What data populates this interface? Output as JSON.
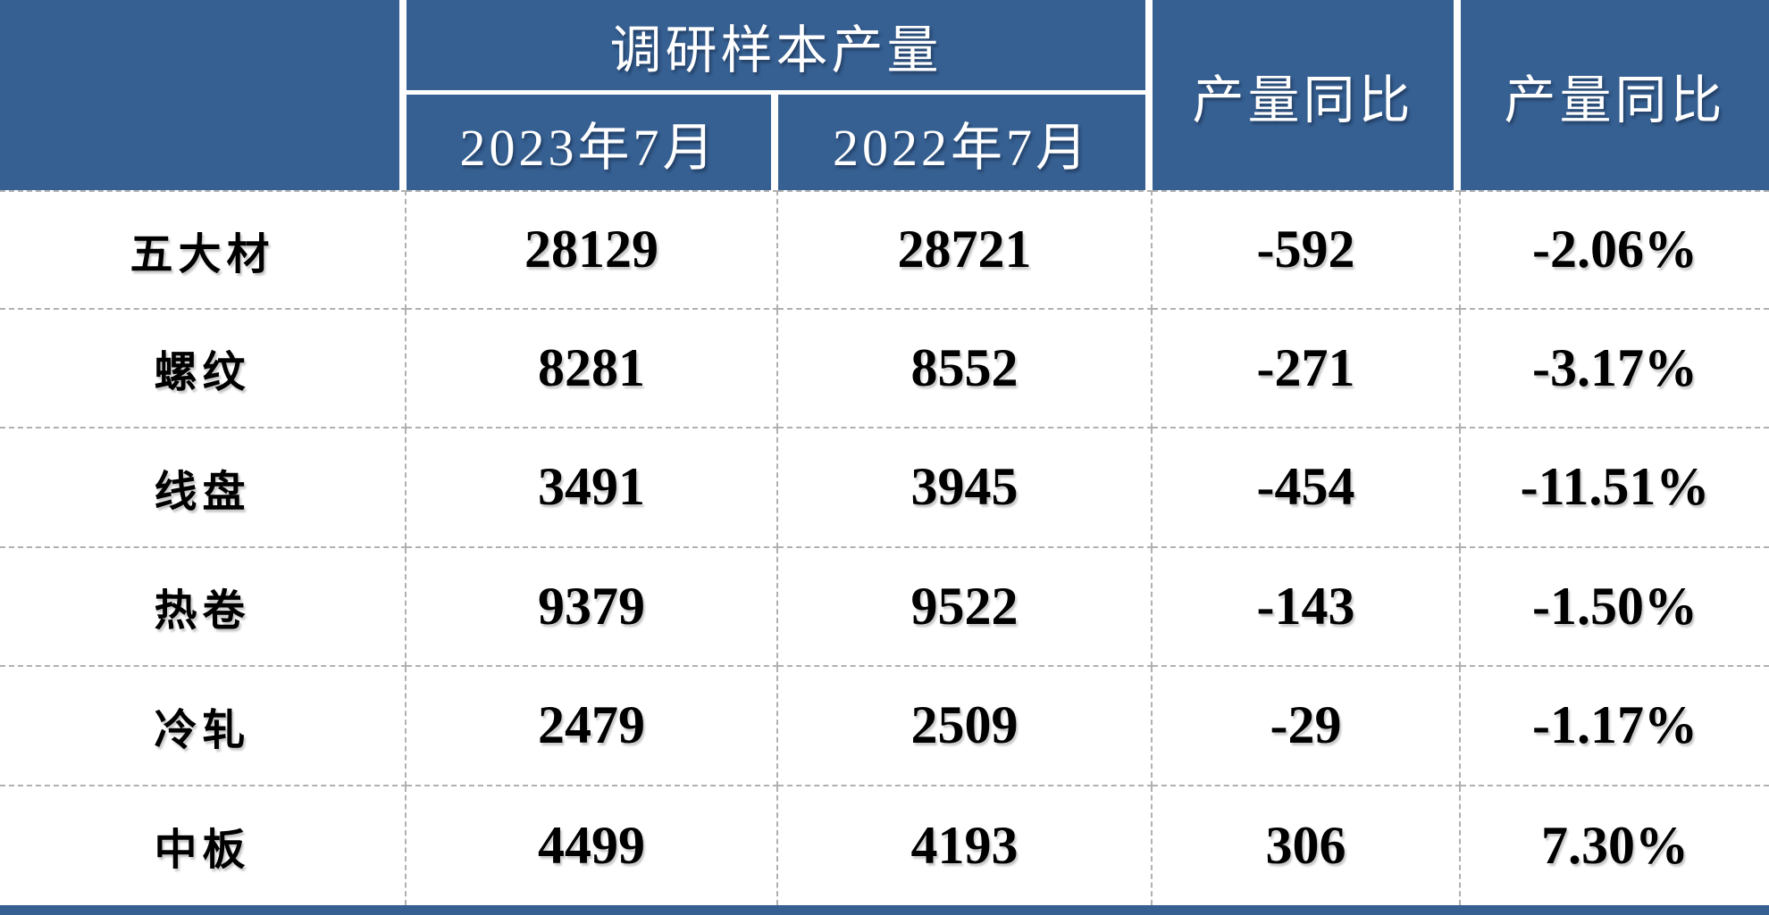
{
  "chart_data": {
    "type": "table",
    "columns": [
      "",
      "2023年7月",
      "2022年7月",
      "产量同比",
      "产量同比"
    ],
    "column_groups": [
      {
        "label": "调研样本产量",
        "spans": [
          "2023年7月",
          "2022年7月"
        ]
      }
    ],
    "rows": [
      {
        "label": "五大材",
        "v2023": "28129",
        "v2022": "28721",
        "yoy_diff": "-592",
        "yoy_pct": "-2.06%"
      },
      {
        "label": "螺纹",
        "v2023": "8281",
        "v2022": "8552",
        "yoy_diff": "-271",
        "yoy_pct": "-3.17%"
      },
      {
        "label": "线盘",
        "v2023": "3491",
        "v2022": "3945",
        "yoy_diff": "-454",
        "yoy_pct": "-11.51%"
      },
      {
        "label": "热卷",
        "v2023": "9379",
        "v2022": "9522",
        "yoy_diff": "-143",
        "yoy_pct": "-1.50%"
      },
      {
        "label": "冷轧",
        "v2023": "2479",
        "v2022": "2509",
        "yoy_diff": "-29",
        "yoy_pct": "-1.17%"
      },
      {
        "label": "中板",
        "v2023": "4499",
        "v2022": "4193",
        "yoy_diff": "306",
        "yoy_pct": "7.30%"
      }
    ]
  },
  "header": {
    "group_label": "调研样本产量",
    "sub_col_1": "2023年7月",
    "sub_col_2": "2022年7月",
    "yoy_diff_label": "产量同比",
    "yoy_pct_label": "产量同比"
  },
  "colors": {
    "header_blue": "#366092",
    "grid_dash_gray": "#b0b0b0",
    "header_text": "#ffffff",
    "body_text": "#000000",
    "background": "#ffffff"
  }
}
